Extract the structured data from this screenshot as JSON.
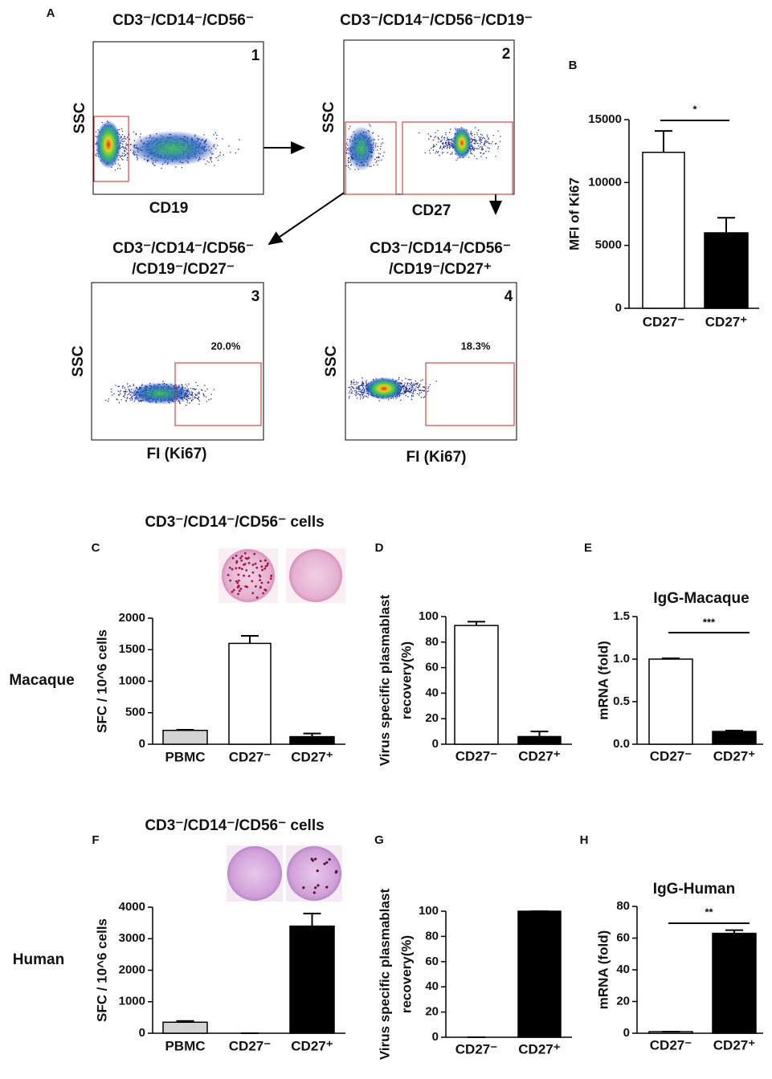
{
  "panel_a_label": "A",
  "flow_panels": [
    {
      "number": "1",
      "title": [
        "CD3⁻/CD14⁻/CD56⁻"
      ],
      "ylabel": "SSC",
      "xlabel": "CD19"
    },
    {
      "number": "2",
      "title": [
        "CD3⁻/CD14⁻/CD56⁻/CD19⁻"
      ],
      "ylabel": "SSC",
      "xlabel": "CD27"
    },
    {
      "number": "3",
      "title": [
        "CD3⁻/CD14⁻/CD56⁻",
        "/CD19⁻/CD27⁻"
      ],
      "ylabel": "SSC",
      "xlabel": "FI (Ki67)",
      "gate_label": "20.0%"
    },
    {
      "number": "4",
      "title": [
        "CD3⁻/CD14⁻/CD56⁻",
        "/CD19⁻/CD27⁺"
      ],
      "ylabel": "SSC",
      "xlabel": "FI (Ki67)",
      "gate_label": "18.3%"
    }
  ],
  "row_labels": [
    "Macaque",
    "Human"
  ],
  "chart_data": [
    {
      "type": "bar",
      "panel": "B",
      "ylabel": [
        "MFI of Ki67"
      ],
      "categories": [
        "CD27⁻",
        "CD27⁺"
      ],
      "values": [
        12400,
        6000
      ],
      "errors": [
        1700,
        1200
      ],
      "colors": [
        "#ffffff",
        "#000000"
      ],
      "ylim": [
        0,
        15000
      ],
      "yticks": [
        0,
        5000,
        10000,
        15000
      ],
      "annotation": "*"
    },
    {
      "type": "bar",
      "panel": "C",
      "title": "CD3⁻/CD14⁻/CD56⁻ cells",
      "ylabel": [
        "SFC / 10^6 cells"
      ],
      "categories": [
        "PBMC",
        "CD27⁻",
        "CD27⁺"
      ],
      "values": [
        220,
        1600,
        120
      ],
      "errors": [
        10,
        120,
        50
      ],
      "colors": [
        "#d3d3d3",
        "#ffffff",
        "#000000"
      ],
      "ylim": [
        0,
        2000
      ],
      "yticks": [
        0,
        500,
        1000,
        1500,
        2000
      ]
    },
    {
      "type": "bar",
      "panel": "D",
      "ylabel": [
        "Virus specific plasmablast",
        "recovery(%)"
      ],
      "categories": [
        "CD27⁻",
        "CD27⁺"
      ],
      "values": [
        93,
        6
      ],
      "errors": [
        3,
        4
      ],
      "colors": [
        "#ffffff",
        "#000000"
      ],
      "ylim": [
        0,
        100
      ],
      "yticks": [
        0,
        20,
        40,
        60,
        80,
        100
      ]
    },
    {
      "type": "bar",
      "panel": "E",
      "title": "IgG-Macaque",
      "ylabel": [
        "mRNA (fold)"
      ],
      "categories": [
        "CD27⁻",
        "CD27⁺"
      ],
      "values": [
        1.0,
        0.15
      ],
      "errors": [
        0.01,
        0.01
      ],
      "colors": [
        "#ffffff",
        "#000000"
      ],
      "ylim": [
        0,
        1.5
      ],
      "yticks": [
        {
          "value": 0,
          "label": "0.0"
        },
        0.5,
        {
          "value": 1,
          "label": "1.0"
        },
        {
          "value": 1.5,
          "label": "1.5"
        }
      ],
      "annotation": "***"
    },
    {
      "type": "bar",
      "panel": "F",
      "title": "CD3⁻/CD14⁻/CD56⁻ cells",
      "ylabel": [
        "SFC / 10^6 cells"
      ],
      "categories": [
        "PBMC",
        "CD27⁻",
        "CD27⁺"
      ],
      "values": [
        350,
        0,
        3400
      ],
      "errors": [
        40,
        0,
        400
      ],
      "colors": [
        "#d3d3d3",
        "#ffffff",
        "#000000"
      ],
      "ylim": [
        0,
        4000
      ],
      "yticks": [
        0,
        1000,
        2000,
        3000,
        4000
      ]
    },
    {
      "type": "bar",
      "panel": "G",
      "ylabel": [
        "Virus specific plasmablast",
        "recovery(%)"
      ],
      "categories": [
        "CD27⁻",
        "CD27⁺"
      ],
      "values": [
        0,
        100
      ],
      "errors": [
        0,
        0
      ],
      "colors": [
        "#ffffff",
        "#000000"
      ],
      "ylim": [
        0,
        100
      ],
      "yticks": [
        0,
        20,
        40,
        60,
        80,
        100
      ]
    },
    {
      "type": "bar",
      "panel": "H",
      "title": "IgG-Human",
      "ylabel": [
        "mRNA (fold)"
      ],
      "categories": [
        "CD27⁻",
        "CD27⁺"
      ],
      "values": [
        1,
        63
      ],
      "errors": [
        0,
        2
      ],
      "colors": [
        "#ffffff",
        "#000000"
      ],
      "ylim": [
        0,
        80
      ],
      "yticks": [
        0,
        20,
        40,
        60,
        80
      ],
      "annotation": "**"
    }
  ]
}
